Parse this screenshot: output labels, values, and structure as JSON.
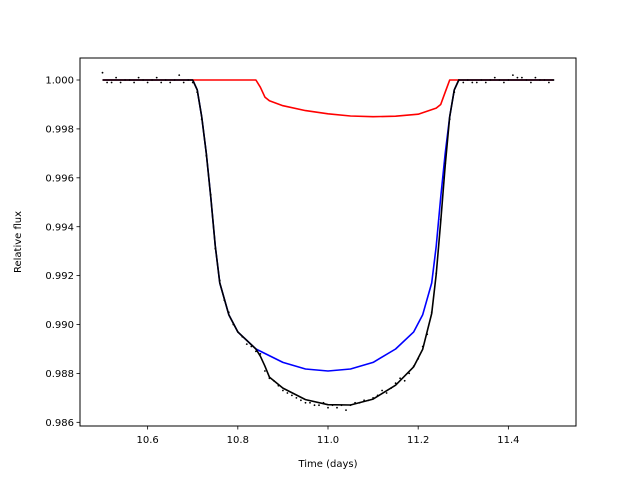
{
  "chart_data": {
    "type": "line",
    "title": "",
    "xlabel": "Time (days)",
    "ylabel": "Relative flux",
    "xlim": [
      10.45,
      11.55
    ],
    "ylim": [
      0.98585,
      1.0009
    ],
    "xticks": [
      "10.6",
      "10.8",
      "11.0",
      "11.2",
      "11.4"
    ],
    "yticks": [
      "0.986",
      "0.988",
      "0.990",
      "0.992",
      "0.994",
      "0.996",
      "0.998",
      "1.000"
    ],
    "grid": false,
    "legend": "none",
    "series": [
      {
        "color": "#0000ff",
        "x": [
          10.5,
          10.7,
          10.71,
          10.72,
          10.73,
          10.74,
          10.75,
          10.76,
          10.78,
          10.8,
          10.84,
          10.9,
          10.95,
          11.0,
          11.05,
          11.1,
          11.15,
          11.19,
          11.21,
          11.23,
          11.24,
          11.25,
          11.26,
          11.27,
          11.28,
          11.29,
          11.5
        ],
        "y": [
          1.0,
          1.0,
          0.9996,
          0.9985,
          0.997,
          0.9952,
          0.9932,
          0.9917,
          0.9904,
          0.9897,
          0.989,
          0.98845,
          0.98818,
          0.9881,
          0.98818,
          0.98845,
          0.989,
          0.9897,
          0.9904,
          0.9917,
          0.9932,
          0.9952,
          0.997,
          0.9985,
          0.9996,
          1.0,
          1.0
        ]
      },
      {
        "color": "#ff0000",
        "x": [
          10.5,
          10.84,
          10.85,
          10.86,
          10.87,
          10.9,
          10.95,
          11.0,
          11.05,
          11.1,
          11.15,
          11.2,
          11.24,
          11.25,
          11.26,
          11.27,
          11.5
        ],
        "y": [
          1.0,
          1.0,
          0.9997,
          0.9993,
          0.99915,
          0.99895,
          0.99875,
          0.99862,
          0.99853,
          0.9985,
          0.99852,
          0.9986,
          0.99885,
          0.999,
          0.9995,
          1.0,
          1.0
        ]
      },
      {
        "color": "#000000",
        "x": [
          10.5,
          10.7,
          10.71,
          10.72,
          10.73,
          10.74,
          10.75,
          10.76,
          10.78,
          10.8,
          10.84,
          10.85,
          10.86,
          10.87,
          10.9,
          10.95,
          11.0,
          11.05,
          11.1,
          11.15,
          11.19,
          11.21,
          11.23,
          11.24,
          11.25,
          11.26,
          11.27,
          11.28,
          11.29,
          11.5
        ],
        "y": [
          1.0,
          1.0,
          0.9996,
          0.9985,
          0.997,
          0.9952,
          0.9932,
          0.9917,
          0.9904,
          0.9897,
          0.989,
          0.9887,
          0.9883,
          0.98785,
          0.9874,
          0.98693,
          0.98672,
          0.98671,
          0.98695,
          0.98752,
          0.98827,
          0.98899,
          0.99045,
          0.99205,
          0.9942,
          0.9965,
          0.9985,
          0.9996,
          1.0,
          1.0
        ]
      }
    ],
    "scatter": {
      "color": "#000000",
      "x": [
        10.5,
        10.51,
        10.52,
        10.53,
        10.54,
        10.55,
        10.56,
        10.57,
        10.58,
        10.59,
        10.6,
        10.61,
        10.62,
        10.63,
        10.64,
        10.65,
        10.66,
        10.67,
        10.68,
        10.69,
        10.7,
        10.71,
        10.72,
        10.73,
        10.74,
        10.75,
        10.76,
        10.77,
        10.78,
        10.79,
        10.8,
        10.81,
        10.82,
        10.83,
        10.84,
        10.85,
        10.86,
        10.87,
        10.88,
        10.89,
        10.9,
        10.91,
        10.92,
        10.93,
        10.94,
        10.95,
        10.96,
        10.97,
        10.98,
        10.99,
        11.0,
        11.01,
        11.02,
        11.03,
        11.04,
        11.05,
        11.06,
        11.07,
        11.08,
        11.09,
        11.1,
        11.11,
        11.12,
        11.13,
        11.14,
        11.15,
        11.16,
        11.17,
        11.18,
        11.19,
        11.2,
        11.21,
        11.22,
        11.23,
        11.24,
        11.25,
        11.26,
        11.27,
        11.28,
        11.29,
        11.3,
        11.31,
        11.32,
        11.33,
        11.34,
        11.35,
        11.36,
        11.37,
        11.38,
        11.39,
        11.4,
        11.41,
        11.42,
        11.43,
        11.44,
        11.45,
        11.46,
        11.47,
        11.48,
        11.49,
        11.5
      ],
      "y": [
        1.0003,
        0.9999,
        0.9999,
        1.0001,
        0.9999,
        1.0,
        1.0,
        0.9999,
        1.0001,
        1.0,
        0.9999,
        1.0,
        1.0001,
        0.9999,
        1.0,
        0.9999,
        1.0,
        1.0002,
        0.9999,
        1.0,
        0.9999,
        0.9995,
        0.9984,
        0.9969,
        0.9953,
        0.9931,
        0.9918,
        0.991,
        0.9905,
        0.99,
        0.9897,
        0.9895,
        0.9892,
        0.9891,
        0.9889,
        0.9888,
        0.9881,
        0.9878,
        0.9877,
        0.9875,
        0.9873,
        0.9872,
        0.9871,
        0.987,
        0.9869,
        0.9868,
        0.9868,
        0.9867,
        0.9867,
        0.9868,
        0.9866,
        0.9867,
        0.9866,
        0.9867,
        0.9865,
        0.9867,
        0.9868,
        0.9868,
        0.9869,
        0.9869,
        0.987,
        0.9871,
        0.9873,
        0.9872,
        0.9874,
        0.9876,
        0.9878,
        0.9877,
        0.988,
        0.9883,
        0.9886,
        0.9891,
        0.9896,
        0.9905,
        0.9921,
        0.9943,
        0.9966,
        0.9984,
        0.9995,
        1.0,
        0.9999,
        1.0,
        0.9999,
        0.9999,
        1.0,
        0.9999,
        1.0,
        1.0001,
        1.0,
        0.9999,
        1.0,
        1.0002,
        1.0001,
        1.0001,
        1.0,
        0.9999,
        1.0001,
        1.0,
        1.0,
        0.9999,
        1.0
      ]
    }
  }
}
